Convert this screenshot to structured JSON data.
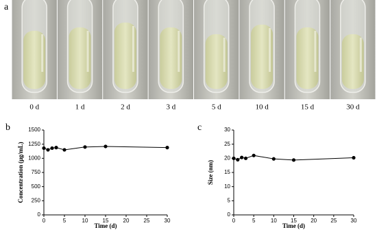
{
  "photo_panel": {
    "label": "a",
    "tubes": [
      "0 d",
      "1 d",
      "2 d",
      "3 d",
      "5 d",
      "10 d",
      "15 d",
      "30 d"
    ]
  },
  "chart_data": [
    {
      "type": "line",
      "panel_label": "b",
      "x_label": "Time (d)",
      "y_label": "Concentration (μg/mL)",
      "x": [
        0,
        1,
        2,
        3,
        5,
        10,
        15,
        30
      ],
      "values": [
        1180,
        1150,
        1180,
        1190,
        1150,
        1200,
        1210,
        1190
      ],
      "color": "#000000",
      "xlim": [
        0,
        30
      ],
      "xticks": [
        0,
        5,
        10,
        15,
        20,
        25,
        30
      ],
      "ylim": [
        0,
        1500
      ],
      "yticks": [
        0,
        250,
        500,
        750,
        1000,
        1250,
        1500
      ]
    },
    {
      "type": "line",
      "panel_label": "c",
      "x_label": "Time (d)",
      "y_label": "Size (nm)",
      "x": [
        0,
        1,
        2,
        3,
        5,
        10,
        15,
        30
      ],
      "values": [
        20,
        19.5,
        20.3,
        20,
        21,
        19.8,
        19.4,
        20.2
      ],
      "color": "#000000",
      "xlim": [
        0,
        30
      ],
      "xticks": [
        0,
        5,
        10,
        15,
        20,
        25,
        30
      ],
      "ylim": [
        0,
        30
      ],
      "yticks": [
        0,
        5,
        10,
        15,
        20,
        25,
        30
      ]
    }
  ]
}
